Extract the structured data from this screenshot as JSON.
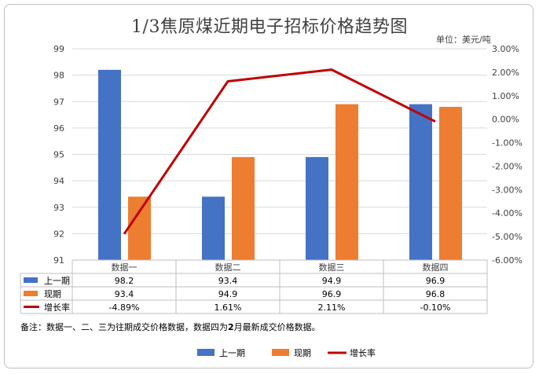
{
  "title": "1/3焦原煤近期电子招标价格趋势图",
  "unit_label": "单位：美元/吨",
  "note": {
    "prefix": "备注：数据一、二、三为往期成交价格数据，数据四为",
    "bold": "2",
    "suffix": "月最新成交价格数据。"
  },
  "chart_data": {
    "type": "bar",
    "title": "1/3焦原煤近期电子招标价格趋势图",
    "categories": [
      "数据一",
      "数据二",
      "数据三",
      "数据四"
    ],
    "series": [
      {
        "name": "上一期",
        "type": "bar",
        "axis": "left",
        "color": "#4472c4",
        "values": [
          98.2,
          93.4,
          94.9,
          96.9
        ],
        "labels": [
          "98.2",
          "93.4",
          "94.9",
          "96.9"
        ]
      },
      {
        "name": "现期",
        "type": "bar",
        "axis": "left",
        "color": "#ed7d31",
        "values": [
          93.4,
          94.9,
          96.9,
          96.8
        ],
        "labels": [
          "93.4",
          "94.9",
          "96.9",
          "96.8"
        ]
      },
      {
        "name": "增长率",
        "type": "line",
        "axis": "right",
        "color": "#c00000",
        "values": [
          -4.89,
          1.61,
          2.11,
          -0.1
        ],
        "labels": [
          "-4.89%",
          "1.61%",
          "2.11%",
          "-0.10%"
        ]
      }
    ],
    "ylim": [
      91,
      99
    ],
    "y_ticks": [
      "91",
      "92",
      "93",
      "94",
      "95",
      "96",
      "97",
      "98",
      "99"
    ],
    "y2lim": [
      -6,
      3
    ],
    "y2_ticks": [
      "3.00%",
      "2.00%",
      "1.00%",
      "0.00%",
      "-1.00%",
      "-2.00%",
      "-3.00%",
      "-4.00%",
      "-5.00%",
      "-6.00%"
    ],
    "grid": true,
    "legend_position": "bottom",
    "data_table": true
  }
}
